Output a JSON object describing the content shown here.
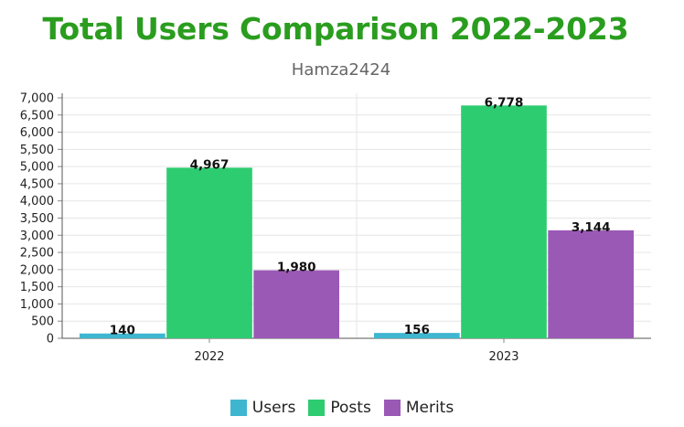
{
  "chart_data": {
    "type": "bar",
    "title": "Total Users Comparison 2022-2023",
    "subtitle": "Hamza2424",
    "categories": [
      "2022",
      "2023"
    ],
    "series": [
      {
        "name": "Users",
        "color": "#3fb6d0",
        "values": [
          140,
          156
        ],
        "labels": [
          "140",
          "156"
        ]
      },
      {
        "name": "Posts",
        "color": "#2ecc71",
        "values": [
          4967,
          6778
        ],
        "labels": [
          "4,967",
          "6,778"
        ]
      },
      {
        "name": "Merits",
        "color": "#9b59b6",
        "values": [
          1980,
          3144
        ],
        "labels": [
          "1,980",
          "3,144"
        ]
      }
    ],
    "ylim": [
      0,
      7000
    ],
    "yticks": [
      0,
      500,
      1000,
      1500,
      2000,
      2500,
      3000,
      3500,
      4000,
      4500,
      5000,
      5500,
      6000,
      6500,
      7000
    ],
    "ytick_labels": [
      "0",
      "500",
      "1,000",
      "1,500",
      "2,000",
      "2,500",
      "3,000",
      "3,500",
      "4,000",
      "4,500",
      "5,000",
      "5,500",
      "6,000",
      "6,500",
      "7,000"
    ],
    "grid": true,
    "legend": "bottom"
  }
}
